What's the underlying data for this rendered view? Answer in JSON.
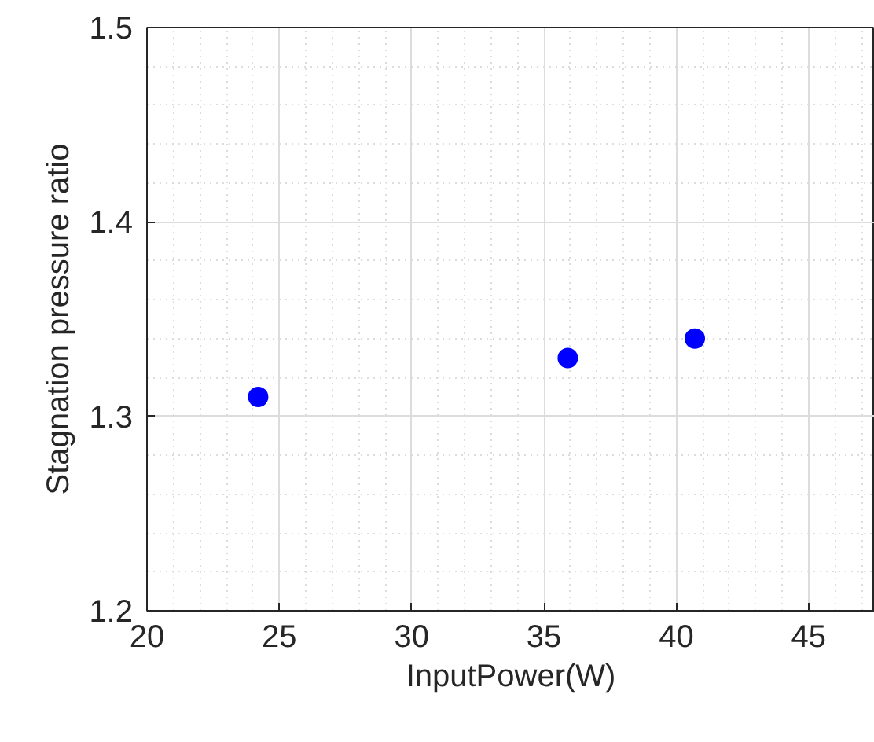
{
  "chart_data": {
    "type": "scatter",
    "xlabel": "InputPower(W)",
    "ylabel": "Stagnation pressure ratio",
    "x": [
      24.2,
      35.9,
      40.7
    ],
    "series": [
      {
        "color": "#0000ff",
        "values": [
          1.31,
          1.33,
          1.34
        ]
      }
    ],
    "xlim": [
      20,
      47.5
    ],
    "xticks": [
      20,
      25,
      30,
      35,
      40,
      45
    ],
    "ylim": [
      1.2,
      1.5
    ],
    "yticks": [
      1.2,
      1.3,
      1.4,
      1.5
    ],
    "grid": true,
    "marker": "circle"
  }
}
